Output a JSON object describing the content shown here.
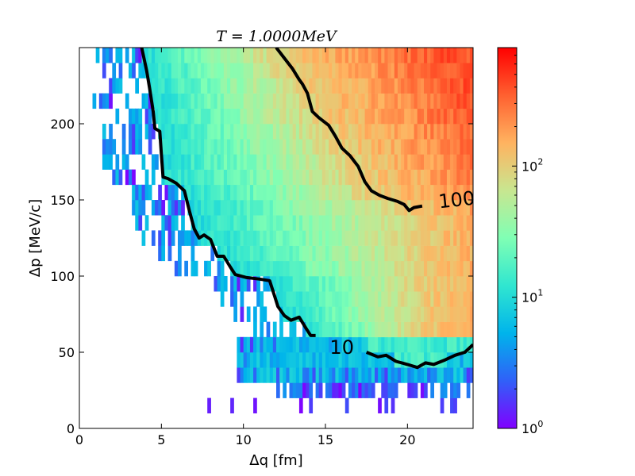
{
  "chart_data": {
    "type": "heatmap",
    "title": "T = 1.0000MeV",
    "xlabel": "Δq [fm]",
    "ylabel": "Δp [MeV/c]",
    "xlim": [
      0,
      24
    ],
    "ylim": [
      0,
      250
    ],
    "x_ticks": [
      0,
      5,
      10,
      15,
      20
    ],
    "y_ticks": [
      0,
      50,
      100,
      150,
      200
    ],
    "x_tick_labels": [
      "0",
      "5",
      "10",
      "15",
      "20"
    ],
    "y_tick_labels": [
      "0",
      "50",
      "100",
      "150",
      "200"
    ],
    "colorbar": {
      "scale": "log",
      "range": [
        1,
        800
      ],
      "ticks": [
        1,
        10,
        100
      ],
      "tick_labels": [
        {
          "base": "10",
          "exp": "0"
        },
        {
          "base": "10",
          "exp": "1"
        },
        {
          "base": "10",
          "exp": "2"
        }
      ],
      "colormap": "rainbow",
      "colors": [
        "#8000ff",
        "#3060f8",
        "#00b4eb",
        "#30e6d0",
        "#80ffb4",
        "#c8e690",
        "#ffb360",
        "#ff6030",
        "#ff0000"
      ]
    },
    "contours": [
      {
        "level": 10,
        "label": "10",
        "label_position": [
          16,
          53
        ],
        "points": [
          [
            3.8,
            250
          ],
          [
            4.1,
            235
          ],
          [
            4.3,
            222
          ],
          [
            4.5,
            208
          ],
          [
            4.6,
            197
          ],
          [
            4.9,
            195
          ],
          [
            5.0,
            180
          ],
          [
            5.1,
            165
          ],
          [
            5.4,
            164
          ],
          [
            5.9,
            161
          ],
          [
            6.4,
            156
          ],
          [
            6.7,
            143
          ],
          [
            7.0,
            131
          ],
          [
            7.3,
            125
          ],
          [
            7.6,
            127
          ],
          [
            8.0,
            124
          ],
          [
            8.4,
            113
          ],
          [
            8.8,
            113
          ],
          [
            9.2,
            106
          ],
          [
            9.5,
            101
          ],
          [
            10.2,
            99
          ],
          [
            11.0,
            98
          ],
          [
            11.6,
            97
          ],
          [
            11.9,
            87
          ],
          [
            12.1,
            80
          ],
          [
            12.5,
            74
          ],
          [
            12.9,
            71
          ],
          [
            13.4,
            73
          ],
          [
            13.8,
            66
          ],
          [
            14.1,
            61
          ],
          [
            14.4,
            61
          ]
        ]
      },
      {
        "level": 10,
        "label": "",
        "points": [
          [
            17.5,
            50
          ],
          [
            18.2,
            47
          ],
          [
            18.7,
            48
          ],
          [
            19.3,
            44
          ],
          [
            20.0,
            42
          ],
          [
            20.6,
            40
          ],
          [
            21.1,
            43
          ],
          [
            21.6,
            42
          ],
          [
            22.3,
            45
          ],
          [
            22.9,
            48
          ],
          [
            23.5,
            50
          ],
          [
            24.0,
            55
          ]
        ]
      },
      {
        "level": 100,
        "label": "100",
        "label_position": [
          23,
          150
        ],
        "points": [
          [
            12.0,
            250
          ],
          [
            12.5,
            243
          ],
          [
            13.0,
            236
          ],
          [
            13.4,
            229
          ],
          [
            13.6,
            226
          ],
          [
            13.9,
            220
          ],
          [
            14.2,
            208
          ],
          [
            14.6,
            204
          ],
          [
            15.2,
            199
          ],
          [
            15.6,
            192
          ],
          [
            16.0,
            184
          ],
          [
            16.5,
            179
          ],
          [
            17.0,
            172
          ],
          [
            17.4,
            162
          ],
          [
            17.8,
            156
          ],
          [
            18.3,
            153
          ],
          [
            18.8,
            151
          ],
          [
            19.4,
            149
          ],
          [
            19.8,
            147
          ],
          [
            20.1,
            143
          ],
          [
            20.4,
            145
          ],
          [
            20.9,
            146
          ]
        ]
      }
    ],
    "notes": "Histogram counts per (Δq, Δp) bin shown on log colour scale; high counts (~200-500) at large Δq and large Δp, low counts (1-10) near the lower-left edge of the populated region."
  }
}
